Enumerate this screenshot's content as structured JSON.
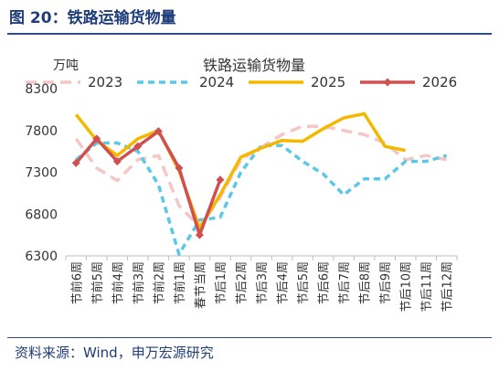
{
  "figure": {
    "title": "图 20：铁路运输货物量",
    "source": "资料来源：Wind，申万宏源研究"
  },
  "chart_data": {
    "type": "line",
    "title": "铁路运输货物量",
    "ylabel": "万吨",
    "ylim": [
      6300,
      8300
    ],
    "yticks": [
      6300,
      6800,
      7300,
      7800,
      8300
    ],
    "grid": false,
    "legend_position": "top",
    "categories": [
      "节前6周",
      "节前5周",
      "节前4周",
      "节前3周",
      "节前2周",
      "节前1周",
      "春节当周",
      "节后1周",
      "节后2周",
      "节后3周",
      "节后4周",
      "节后5周",
      "节后6周",
      "节后7周",
      "节后8周",
      "节后9周",
      "节后10周",
      "节后11周",
      "节后12周"
    ],
    "series": [
      {
        "name": "2023",
        "color": "#f4c6c6",
        "dash": "long",
        "values": [
          7700,
          7350,
          7200,
          7450,
          7500,
          6900,
          6650,
          7000,
          7450,
          7600,
          7750,
          7850,
          7850,
          7800,
          7750,
          7650,
          7450,
          7500,
          7450
        ]
      },
      {
        "name": "2024",
        "color": "#5bc8e8",
        "dash": "short",
        "values": [
          7450,
          7650,
          7650,
          7550,
          7150,
          6320,
          6730,
          6760,
          7300,
          7620,
          7620,
          7430,
          7280,
          7030,
          7220,
          7220,
          7430,
          7430,
          7500
        ]
      },
      {
        "name": "2025",
        "color": "#f5b800",
        "dash": "solid",
        "values": [
          7990,
          7680,
          7500,
          7700,
          7800,
          7320,
          6630,
          7030,
          7480,
          7590,
          7680,
          7670,
          7820,
          7950,
          8000,
          7610,
          7560,
          null,
          null
        ]
      },
      {
        "name": "2026",
        "color": "#d05050",
        "dash": "solid",
        "markers": true,
        "values": [
          7410,
          7700,
          7430,
          7610,
          7790,
          7350,
          6550,
          7210,
          null,
          null,
          null,
          null,
          null,
          null,
          null,
          null,
          null,
          null,
          null
        ]
      }
    ]
  }
}
